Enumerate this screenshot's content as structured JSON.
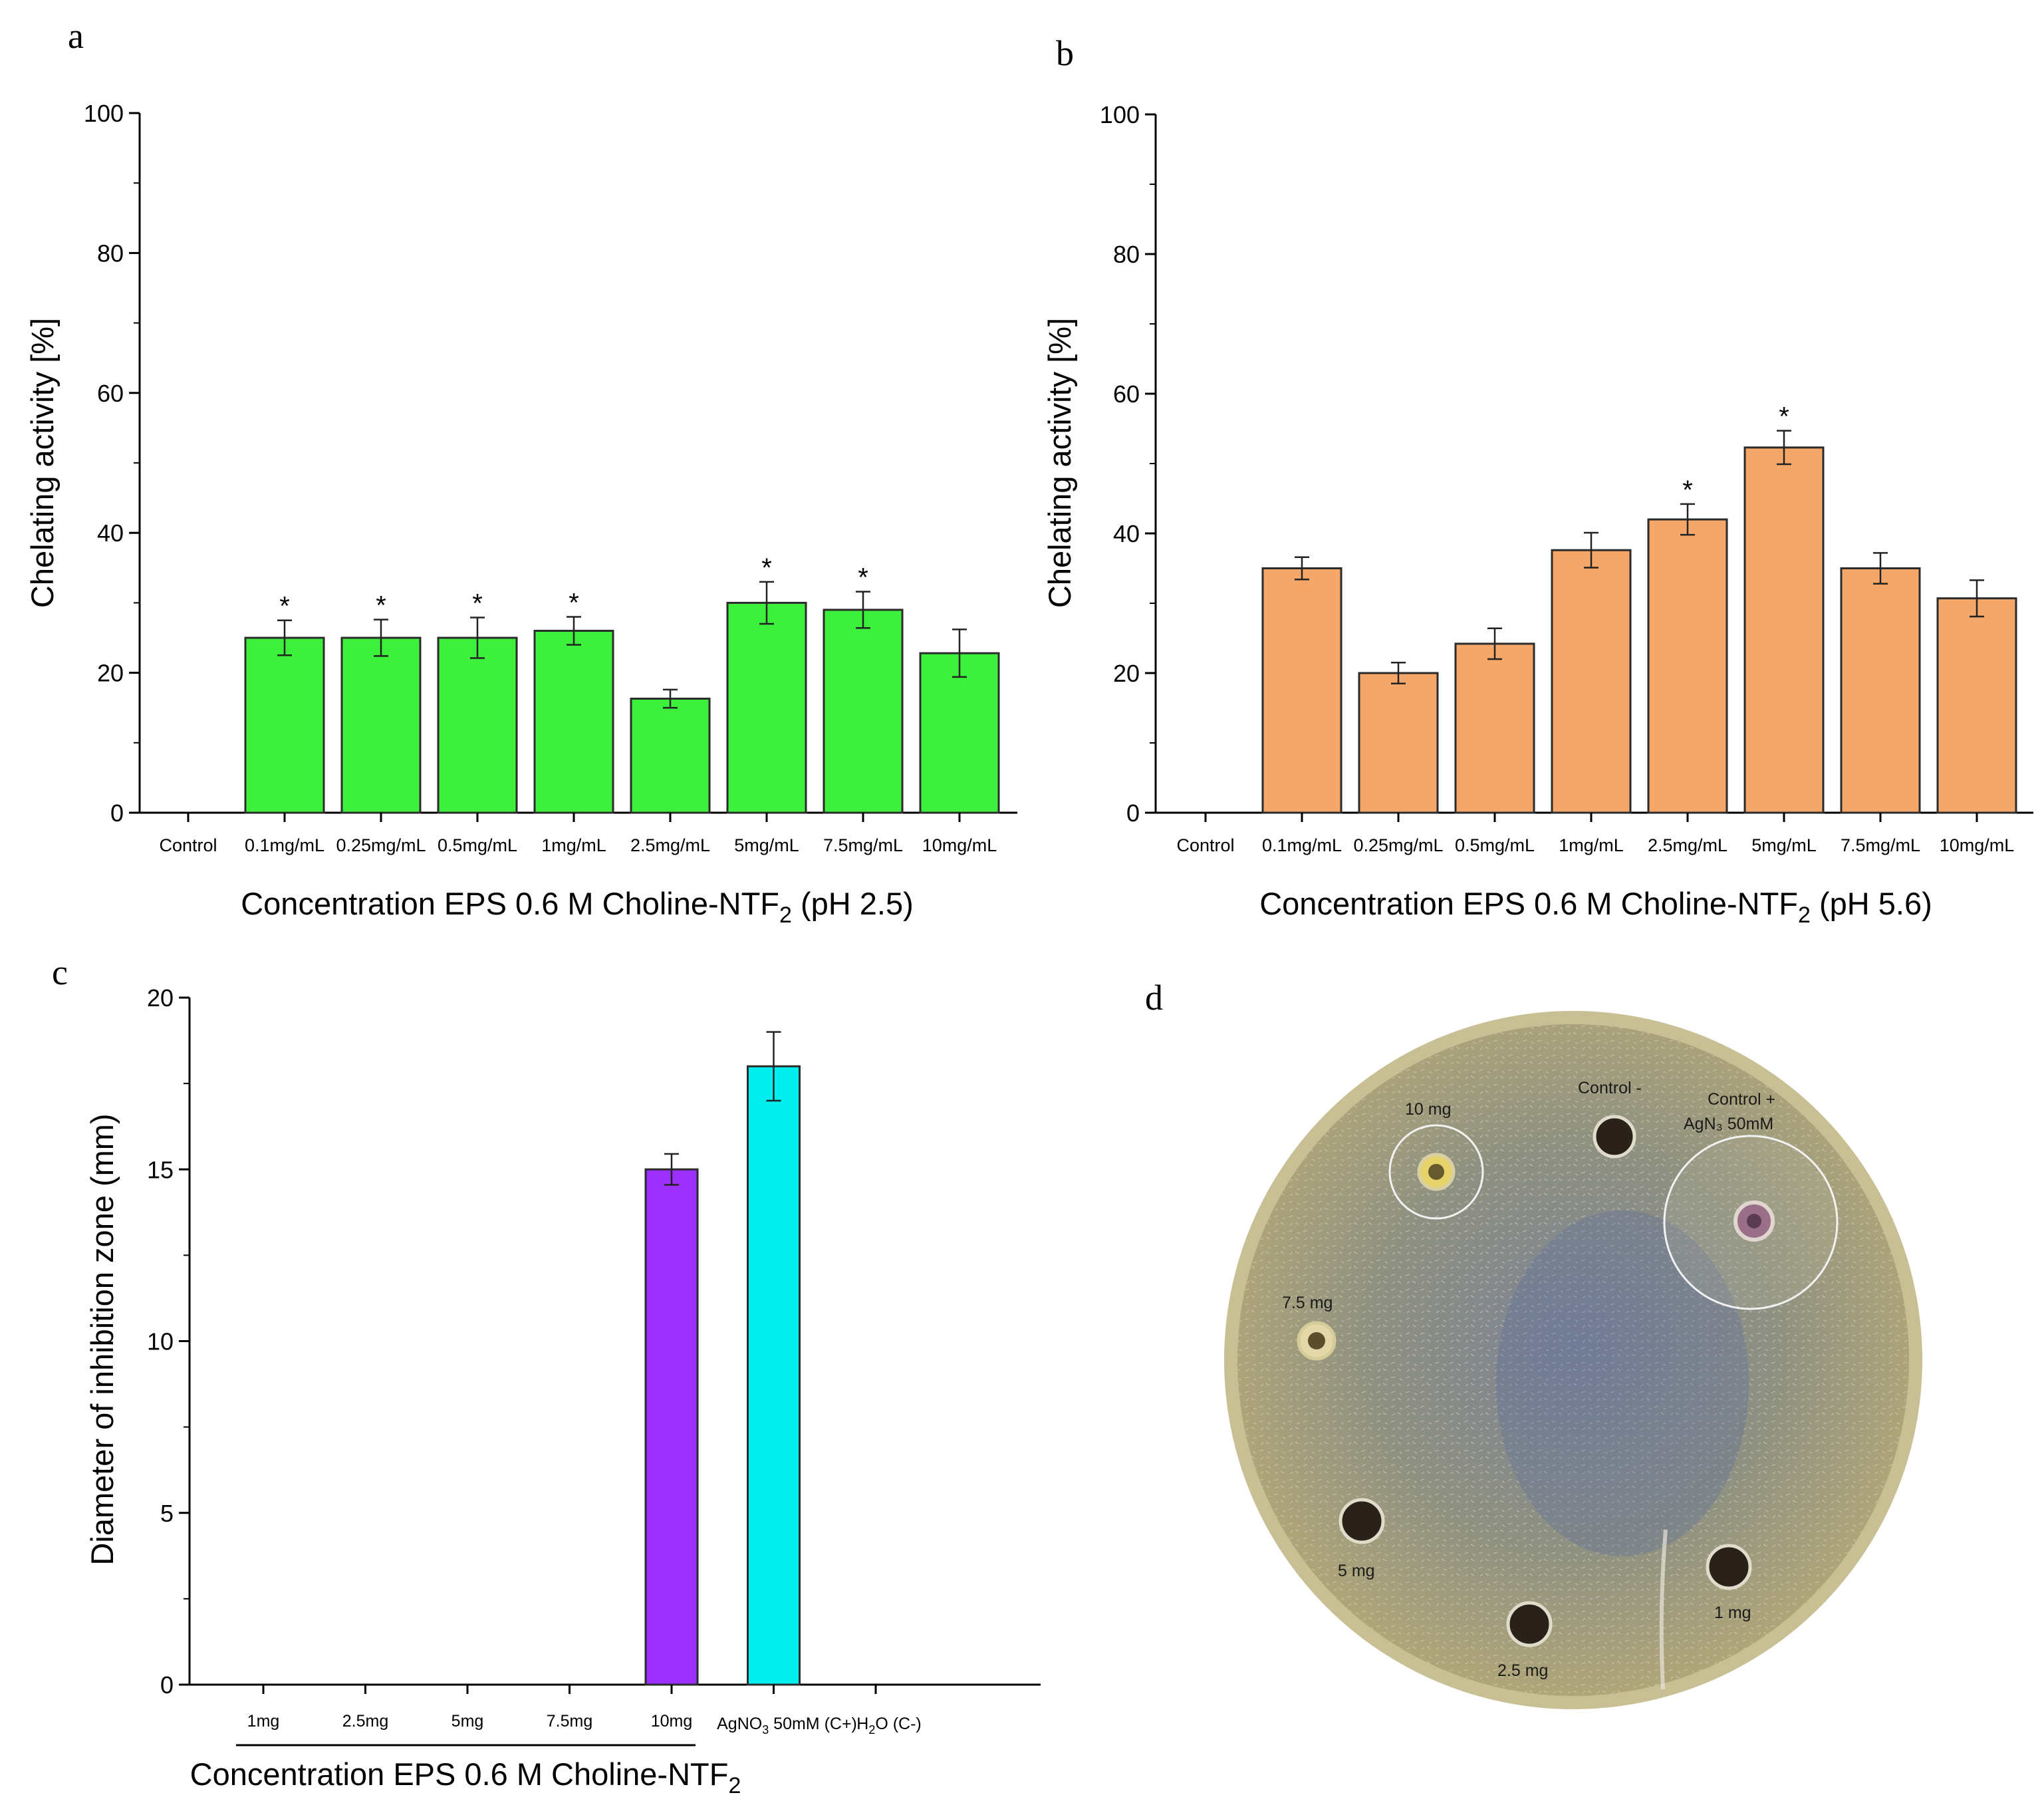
{
  "panels": {
    "a": "a",
    "b": "b",
    "c": "c",
    "d": "d"
  },
  "chart_data": [
    {
      "id": "a",
      "type": "bar",
      "title": "",
      "xlabel": "Concentration EPS 0.6 M Choline-NTF",
      "xlabel_sub": "2",
      "xlabel_suffix": " (pH 2.5)",
      "ylabel": "Chelating activity [%]",
      "ylim": [
        0,
        100
      ],
      "yticks": [
        0,
        20,
        40,
        60,
        80,
        100
      ],
      "categories": [
        "Control",
        "0.1mg/mL",
        "0.25mg/mL",
        "0.5mg/mL",
        "1mg/mL",
        "2.5mg/mL",
        "5mg/mL",
        "7.5mg/mL",
        "10mg/mL"
      ],
      "values": [
        0,
        25,
        25,
        25,
        26,
        16.3,
        30,
        29,
        22.8
      ],
      "errors": [
        0,
        2.5,
        2.6,
        2.9,
        2.0,
        1.3,
        3.0,
        2.6,
        3.4
      ],
      "significant": [
        false,
        true,
        true,
        true,
        true,
        false,
        true,
        true,
        false
      ],
      "marker": "*",
      "color": "#3cf03c"
    },
    {
      "id": "b",
      "type": "bar",
      "title": "",
      "xlabel": "Concentration EPS 0.6 M Choline-NTF",
      "xlabel_sub": "2",
      "xlabel_suffix": " (pH 5.6)",
      "ylabel": "Chelating activity [%]",
      "ylim": [
        0,
        100
      ],
      "yticks": [
        0,
        20,
        40,
        60,
        80,
        100
      ],
      "categories": [
        "Control",
        "0.1mg/mL",
        "0.25mg/mL",
        "0.5mg/mL",
        "1mg/mL",
        "2.5mg/mL",
        "5mg/mL",
        "7.5mg/mL",
        "10mg/mL"
      ],
      "values": [
        0,
        35,
        20,
        24.2,
        37.6,
        42,
        52.3,
        35,
        30.7
      ],
      "errors": [
        0,
        1.6,
        1.5,
        2.2,
        2.5,
        2.2,
        2.4,
        2.2,
        2.6
      ],
      "significant": [
        false,
        false,
        false,
        false,
        false,
        true,
        true,
        false,
        false
      ],
      "marker": "*",
      "color": "#f5a76a"
    },
    {
      "id": "c",
      "type": "bar",
      "title": "",
      "xlabel": "Concentration EPS 0.6 M Choline-NTF",
      "xlabel_sub": "2",
      "ylabel": "Diameter of inhibition zone (mm)",
      "ylim": [
        0,
        20
      ],
      "yticks": [
        0,
        5,
        10,
        15,
        20
      ],
      "categories": [
        "1mg",
        "2.5mg",
        "5mg",
        "7.5mg",
        "10mg",
        "AgNO3 50mM (C+)",
        "H2O (C-)"
      ],
      "category_display": {
        "agno3": {
          "pre": "AgNO",
          "sub": "3",
          "post": " 50mM (C+)"
        },
        "h2o": {
          "pre": "H",
          "sub": "2",
          "post": "O (C-)"
        }
      },
      "values": [
        0,
        0,
        0,
        0,
        15,
        18,
        0
      ],
      "errors": [
        0,
        0,
        0,
        0,
        0.45,
        1.0,
        0
      ],
      "colors": [
        "#9b30ff",
        "#9b30ff",
        "#9b30ff",
        "#9b30ff",
        "#9b30ff",
        "#00f0f0",
        "#00f0f0"
      ]
    }
  ],
  "plate": {
    "labels": {
      "well_10": "10 mg",
      "control_neg": "Control -",
      "control_pos_1": "Control +",
      "control_pos_2": "AgN₃ 50mM",
      "well_7_5": "7.5 mg",
      "well_5": "5 mg",
      "well_1": "1 mg",
      "well_2_5": "2.5 mg"
    }
  }
}
